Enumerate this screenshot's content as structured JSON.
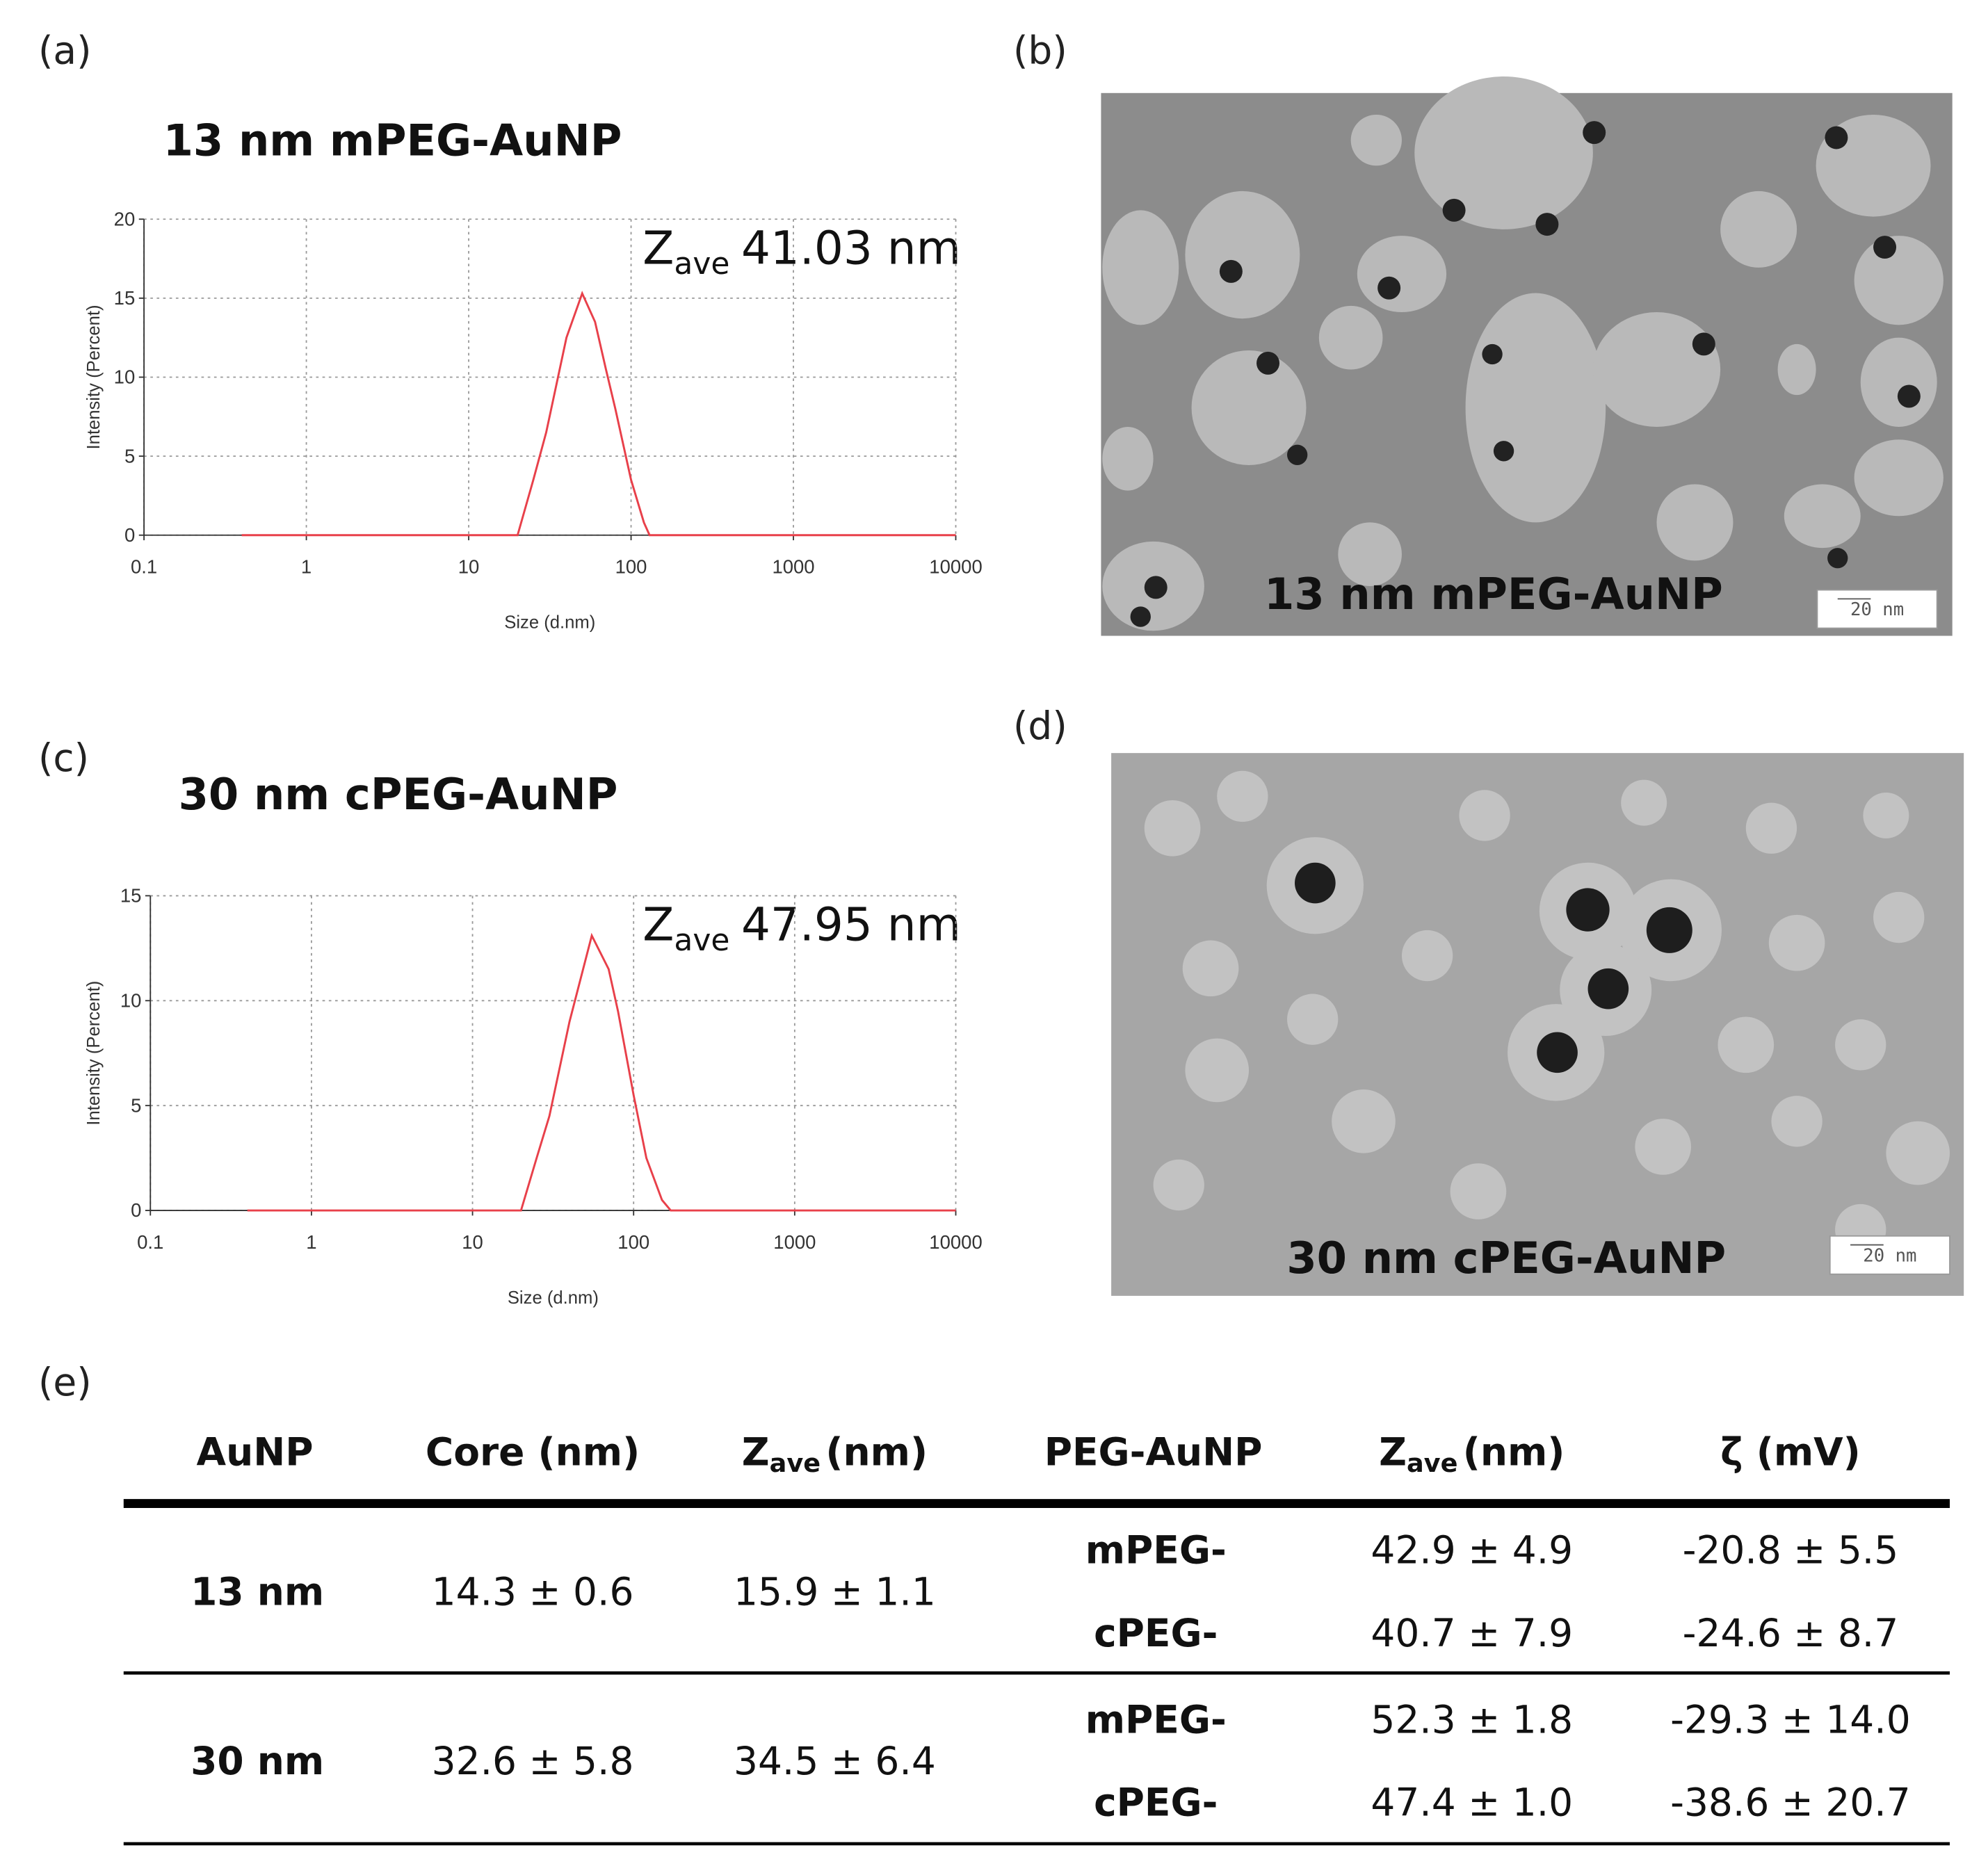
{
  "panel_labels": [
    "(a)",
    "(b)",
    "(c)",
    "(d)",
    "(e)"
  ],
  "chart_data": [
    {
      "type": "line",
      "title": "13 nm mPEG-AuNP",
      "annotation": {
        "symbol": "Z",
        "subscript": "ave",
        "text": "41.03 nm"
      },
      "x_label": "Size (d.nm)",
      "y_label": "Intensity (Percent)",
      "x_scale": "log",
      "xlim": [
        0.1,
        10000
      ],
      "xticks": [
        0.1,
        1,
        10,
        100,
        1000,
        10000
      ],
      "ylim": [
        0,
        20
      ],
      "yticks": [
        0,
        5,
        10,
        15,
        20
      ],
      "grid": true,
      "color": "#e8404a",
      "x": [
        0.4,
        1,
        10,
        20,
        25,
        30,
        40,
        50,
        60,
        70,
        80,
        100,
        120,
        130,
        1000,
        10000
      ],
      "values": [
        0,
        0,
        0,
        0,
        3.5,
        6.5,
        12.5,
        15.3,
        13.5,
        10.5,
        8,
        3.5,
        0.8,
        0,
        0,
        0
      ]
    },
    {
      "type": "line",
      "title": "30 nm cPEG-AuNP",
      "annotation": {
        "symbol": "Z",
        "subscript": "ave",
        "text": "47.95 nm"
      },
      "x_label": "Size (d.nm)",
      "y_label": "Intensity (Percent)",
      "x_scale": "log",
      "xlim": [
        0.1,
        10000
      ],
      "xticks": [
        0.1,
        1,
        10,
        100,
        1000,
        10000
      ],
      "ylim": [
        0,
        15
      ],
      "yticks": [
        0,
        5,
        10,
        15
      ],
      "grid": true,
      "color": "#e8404a",
      "x": [
        0.4,
        1,
        10,
        20,
        25,
        30,
        40,
        55,
        70,
        80,
        100,
        120,
        150,
        170,
        1000,
        10000
      ],
      "values": [
        0,
        0,
        0,
        0,
        2.5,
        4.5,
        9,
        13.1,
        11.5,
        9.5,
        5.5,
        2.5,
        0.5,
        0,
        0,
        0
      ]
    }
  ],
  "images": [
    {
      "caption": "13 nm mPEG-AuNP",
      "scale_bar": "20 nm"
    },
    {
      "caption": "30 nm cPEG-AuNP",
      "scale_bar": "20 nm"
    }
  ],
  "table": {
    "header": {
      "aunp": "AuNP",
      "core": "Core (nm)",
      "zave_symbol": "Z",
      "zave_sub": "ave",
      "zave_unit": "(nm)",
      "peg": "PEG-AuNP",
      "zeta": "ζ (mV)"
    },
    "rows": [
      {
        "aunp": "13 nm",
        "core": "14.3 ± 0.6",
        "zave": "15.9 ± 1.1",
        "peg": [
          {
            "name": "mPEG-",
            "zave": "42.9 ± 4.9",
            "zeta": "-20.8 ± 5.5"
          },
          {
            "name": "cPEG-",
            "zave": "40.7 ± 7.9",
            "zeta": "-24.6 ± 8.7"
          }
        ]
      },
      {
        "aunp": "30 nm",
        "core": "32.6 ± 5.8",
        "zave": "34.5 ± 6.4",
        "peg": [
          {
            "name": "mPEG-",
            "zave": "52.3 ± 1.8",
            "zeta": "-29.3 ± 14.0"
          },
          {
            "name": "cPEG-",
            "zave": "47.4 ± 1.0",
            "zeta": "-38.6 ± 20.7"
          }
        ]
      }
    ]
  }
}
